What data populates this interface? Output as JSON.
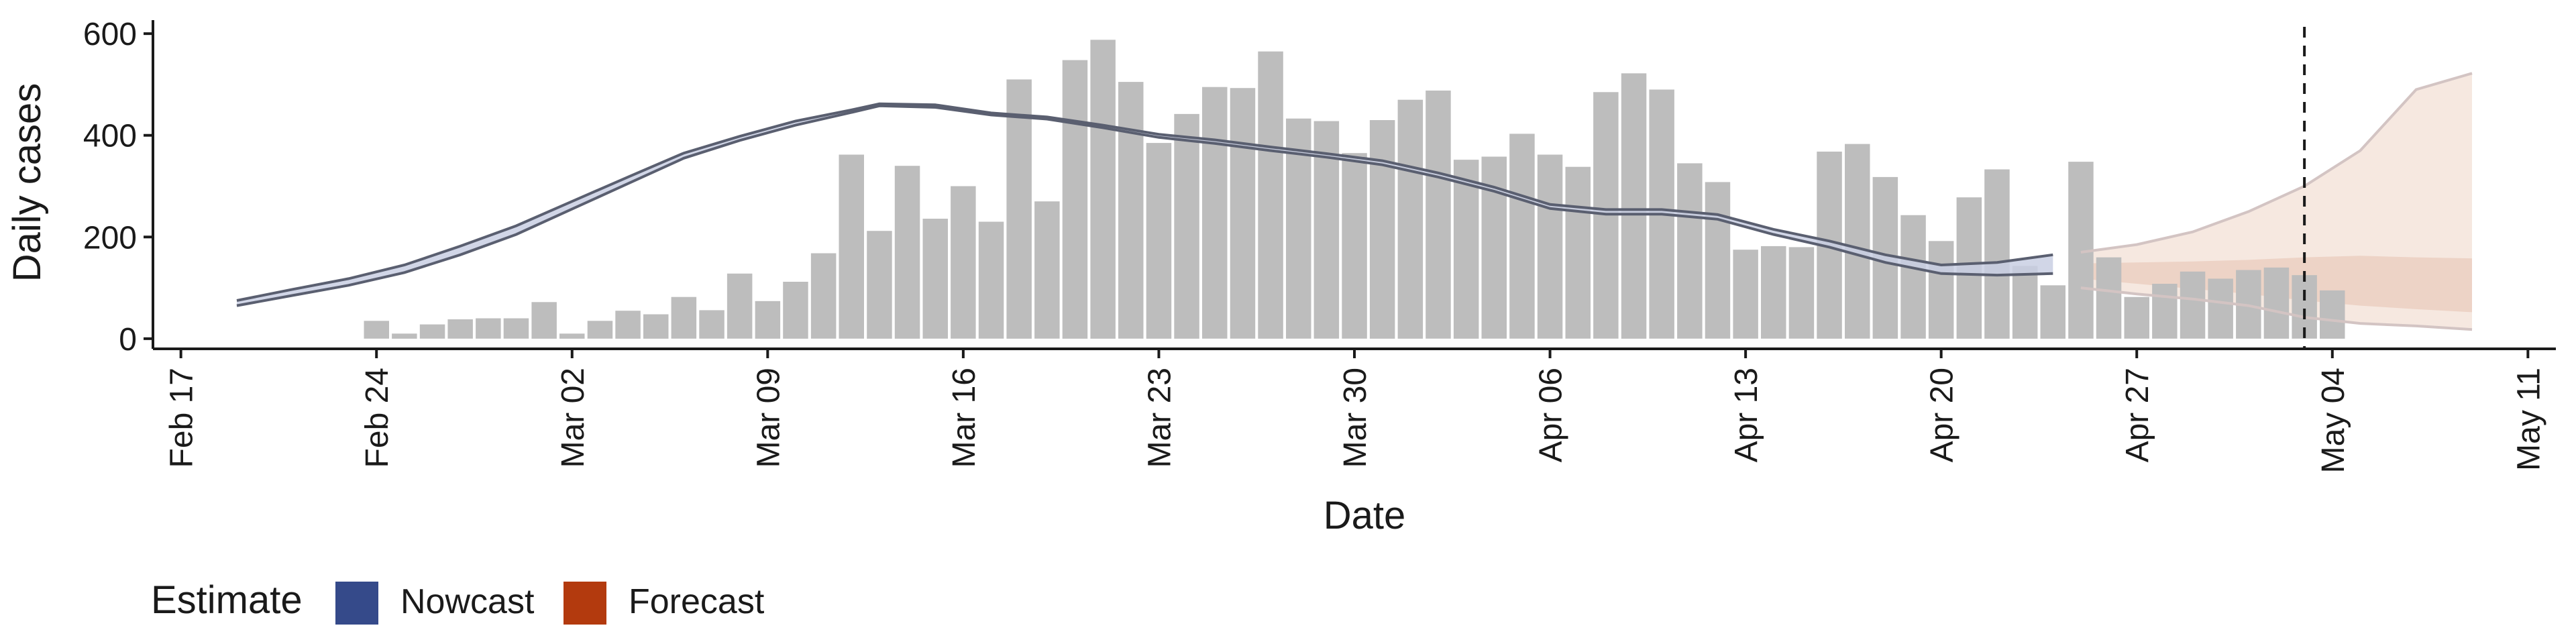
{
  "chart_data": {
    "type": "bar",
    "xlabel": "Date",
    "ylabel": "Daily cases",
    "ylim": [
      -20,
      620
    ],
    "yticks": [
      0,
      200,
      400,
      600
    ],
    "xticks": [
      "Feb 17",
      "Feb 24",
      "Mar 02",
      "Mar 09",
      "Mar 16",
      "Mar 23",
      "Mar 30",
      "Apr 06",
      "Apr 13",
      "Apr 20",
      "Apr 27",
      "May 04",
      "May 11"
    ],
    "xlim": [
      "2020-02-16",
      "2020-05-12"
    ],
    "bar_start_date": "2020-02-24",
    "bars": [
      35,
      10,
      28,
      38,
      40,
      40,
      72,
      10,
      35,
      55,
      48,
      82,
      56,
      128,
      74,
      112,
      168,
      362,
      212,
      340,
      236,
      300,
      230,
      510,
      270,
      548,
      588,
      505,
      385,
      442,
      495,
      493,
      565,
      433,
      428,
      365,
      430,
      470,
      488,
      352,
      358,
      403,
      362,
      338,
      485,
      522,
      490,
      345,
      308,
      175,
      182,
      180,
      368,
      383,
      318,
      243,
      192,
      278,
      333,
      143,
      105,
      348,
      160,
      82,
      108,
      132,
      118,
      135,
      140,
      125,
      95
    ],
    "nowcast": {
      "dates": [
        "2020-02-19",
        "2020-02-21",
        "2020-02-23",
        "2020-02-25",
        "2020-02-27",
        "2020-02-29",
        "2020-03-02",
        "2020-03-04",
        "2020-03-06",
        "2020-03-08",
        "2020-03-10",
        "2020-03-12",
        "2020-03-13",
        "2020-03-15",
        "2020-03-17",
        "2020-03-19",
        "2020-03-21",
        "2020-03-23",
        "2020-03-25",
        "2020-03-27",
        "2020-03-29",
        "2020-03-31",
        "2020-04-02",
        "2020-04-04",
        "2020-04-06",
        "2020-04-08",
        "2020-04-10",
        "2020-04-12",
        "2020-04-14",
        "2020-04-16",
        "2020-04-18",
        "2020-04-20",
        "2020-04-22",
        "2020-04-24"
      ],
      "lower": [
        65,
        85,
        105,
        130,
        165,
        205,
        255,
        305,
        355,
        390,
        420,
        445,
        458,
        455,
        440,
        432,
        415,
        396,
        384,
        370,
        357,
        342,
        318,
        290,
        256,
        245,
        245,
        235,
        205,
        180,
        150,
        128,
        125,
        128
      ],
      "upper": [
        75,
        97,
        118,
        145,
        182,
        222,
        270,
        318,
        365,
        398,
        428,
        450,
        462,
        460,
        444,
        436,
        420,
        402,
        391,
        377,
        364,
        350,
        326,
        298,
        264,
        254,
        254,
        244,
        215,
        192,
        165,
        145,
        150,
        165
      ]
    },
    "forecast": {
      "dates": [
        "2020-04-25",
        "2020-04-27",
        "2020-04-29",
        "2020-05-01",
        "2020-05-03",
        "2020-05-05",
        "2020-05-07",
        "2020-05-09"
      ],
      "outer_lower": [
        100,
        88,
        78,
        65,
        42,
        30,
        25,
        18
      ],
      "outer_upper": [
        170,
        185,
        210,
        250,
        300,
        370,
        490,
        522
      ],
      "inner_lower": [
        118,
        108,
        98,
        88,
        75,
        65,
        58,
        52
      ],
      "inner_upper": [
        148,
        150,
        152,
        155,
        160,
        163,
        160,
        158
      ]
    },
    "forecast_start": "2020-05-03",
    "legend": {
      "title": "Estimate",
      "items": [
        {
          "label": "Nowcast",
          "color": "#354a8a"
        },
        {
          "label": "Forecast",
          "color": "#b33a0e"
        }
      ]
    },
    "grid": false,
    "legend_position": "bottom-left"
  },
  "colors": {
    "bar": "#bdbdbd",
    "nowcast_band": "#c9cfe3",
    "nowcast_line": "#5a5f70",
    "forecast_outer": "#f6e8e0",
    "forecast_inner": "#edd3c6",
    "forecast_line": "#d3c4c3"
  }
}
